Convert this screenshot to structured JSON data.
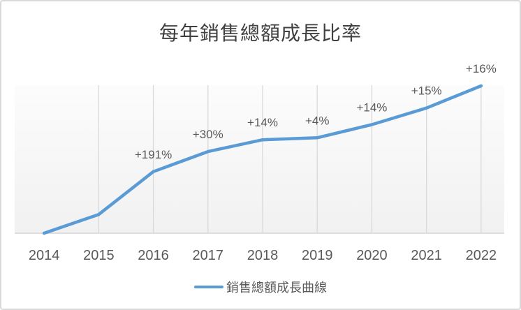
{
  "chart_data": {
    "type": "line",
    "title": "每年銷售總額成長比率",
    "categories": [
      "2014",
      "2015",
      "2016",
      "2017",
      "2018",
      "2019",
      "2020",
      "2021",
      "2022"
    ],
    "series": [
      {
        "name": "銷售總額成長曲線",
        "color": "#5B9BD5",
        "values": [
          0,
          12.7,
          41.8,
          55.4,
          63.4,
          64.8,
          73.7,
          85.0,
          100
        ],
        "data_labels": [
          "",
          "",
          "+191%",
          "+30%",
          "+14%",
          "+4%",
          "+14%",
          "+15%",
          "+16%"
        ]
      }
    ],
    "ylim": [
      0,
      100
    ],
    "y_axis_visible": false,
    "gridlines": "vertical-only",
    "legend_position": "bottom-center",
    "colors": {
      "accent": "#5B9BD5",
      "gridline": "#D9D9D9",
      "axis_line": "#D9D9D9",
      "plot_band_top": "#FCFCFC",
      "plot_band_bottom": "#F1F1F1",
      "label_text": "#595959",
      "title_text": "#404040"
    }
  }
}
